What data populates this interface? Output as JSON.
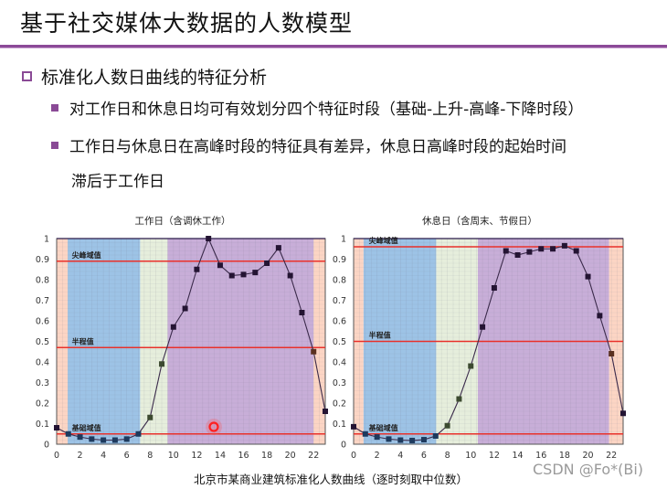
{
  "header": {
    "title": "基于社交媒体大数据的人数模型",
    "accent_color": "#8c4a98"
  },
  "content": {
    "heading": "标准化人数日曲线的特征分析",
    "bullets": [
      "对工作日和休息日均可有效划分四个特征时段（基础-上升-高峰-下降时段）",
      "工作日与休息日在高峰时段的特征具有差异，休息日高峰时段的起始时间",
      "滞后于工作日"
    ]
  },
  "caption": "北京市某商业建筑标准化人数曲线（逐时刻取中位数）",
  "watermark": "CSDN @Fo*(Bi)",
  "chart_data": [
    {
      "type": "line",
      "title": "工作日（含调休工作）",
      "xlabel": "",
      "ylabel": "",
      "x": [
        0,
        1,
        2,
        3,
        4,
        5,
        6,
        7,
        8,
        9,
        10,
        11,
        12,
        13,
        14,
        15,
        16,
        17,
        18,
        19,
        20,
        21,
        22,
        23
      ],
      "xticks": [
        0,
        2,
        4,
        6,
        8,
        10,
        12,
        14,
        16,
        18,
        20,
        22
      ],
      "yticks": [
        0,
        0.1,
        0.2,
        0.3,
        0.4,
        0.5,
        0.6,
        0.7,
        0.8,
        0.9,
        1
      ],
      "ylim": [
        0,
        1
      ],
      "xlim": [
        0,
        23
      ],
      "series": [
        {
          "name": "标准化人数",
          "values": [
            0.08,
            0.05,
            0.035,
            0.025,
            0.02,
            0.02,
            0.025,
            0.05,
            0.13,
            0.39,
            0.57,
            0.66,
            0.85,
            1.0,
            0.87,
            0.82,
            0.825,
            0.835,
            0.88,
            0.955,
            0.82,
            0.64,
            0.45,
            0.16
          ]
        }
      ],
      "thresholds": [
        {
          "label": "尖峰域值",
          "value": 0.89
        },
        {
          "label": "半程值",
          "value": 0.47
        },
        {
          "label": "基础域值",
          "value": 0.05
        }
      ],
      "bands": [
        {
          "name": "night",
          "from": 0,
          "to": 0.95,
          "color": "#fcd5c4"
        },
        {
          "name": "base",
          "from": 0.95,
          "to": 7.15,
          "color": "#9dc3e6"
        },
        {
          "name": "rise",
          "from": 7.15,
          "to": 9.5,
          "color": "#e6eedc"
        },
        {
          "name": "peak",
          "from": 9.5,
          "to": 22,
          "color": "#c8aed8"
        },
        {
          "name": "night",
          "from": 22,
          "to": 23,
          "color": "#fcd5c4"
        }
      ]
    },
    {
      "type": "line",
      "title": "休息日（含周末、节假日）",
      "xlabel": "",
      "ylabel": "",
      "x": [
        0,
        1,
        2,
        3,
        4,
        5,
        6,
        7,
        8,
        9,
        10,
        11,
        12,
        13,
        14,
        15,
        16,
        17,
        18,
        19,
        20,
        21,
        22,
        23
      ],
      "xticks": [
        0,
        2,
        4,
        6,
        8,
        10,
        12,
        14,
        16,
        18,
        20,
        22
      ],
      "yticks": [
        0,
        0.1,
        0.2,
        0.3,
        0.4,
        0.5,
        0.6,
        0.7,
        0.8,
        0.9,
        1
      ],
      "ylim": [
        0,
        1
      ],
      "xlim": [
        0,
        23
      ],
      "series": [
        {
          "name": "标准化人数",
          "values": [
            0.085,
            0.05,
            0.035,
            0.025,
            0.02,
            0.018,
            0.022,
            0.04,
            0.09,
            0.22,
            0.38,
            0.57,
            0.76,
            0.94,
            0.92,
            0.935,
            0.95,
            0.95,
            0.965,
            0.94,
            0.815,
            0.625,
            0.44,
            0.15
          ]
        }
      ],
      "thresholds": [
        {
          "label": "尖峰域值",
          "value": 0.96
        },
        {
          "label": "半程值",
          "value": 0.5
        },
        {
          "label": "基础域值",
          "value": 0.05
        }
      ],
      "bands": [
        {
          "name": "night",
          "from": 0,
          "to": 0.85,
          "color": "#fcd5c4"
        },
        {
          "name": "base",
          "from": 0.85,
          "to": 7.05,
          "color": "#9dc3e6"
        },
        {
          "name": "rise",
          "from": 7.05,
          "to": 10.6,
          "color": "#e6eedc"
        },
        {
          "name": "peak",
          "from": 10.6,
          "to": 21.8,
          "color": "#c8aed8"
        },
        {
          "name": "night",
          "from": 21.8,
          "to": 23,
          "color": "#fcd5c4"
        }
      ]
    }
  ]
}
